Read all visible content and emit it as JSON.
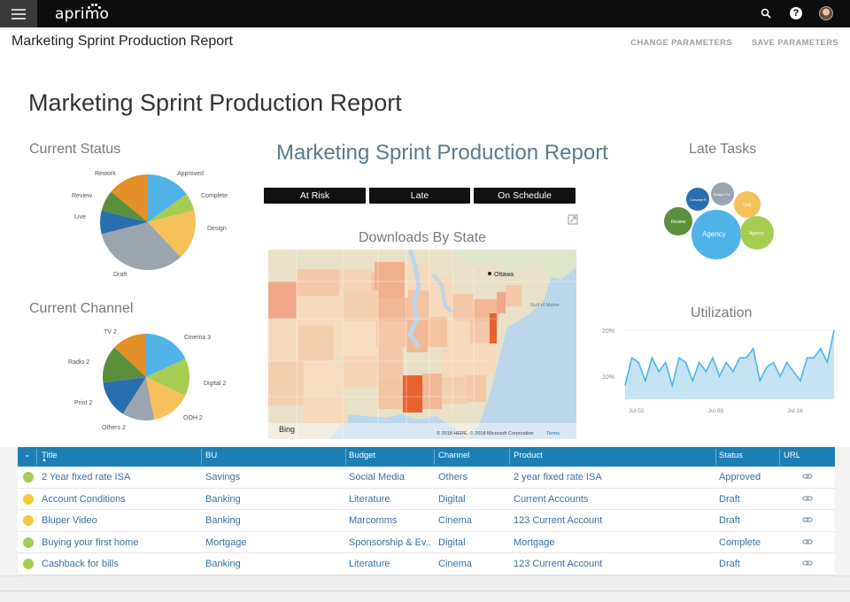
{
  "topbar": {
    "logo_text": "aprimo"
  },
  "header": {
    "title": "Marketing Sprint Production Report",
    "actions": [
      "CHANGE PARAMETERS",
      "SAVE PARAMETERS"
    ]
  },
  "report": {
    "title": "Marketing Sprint Production Report",
    "center_title": "Marketing Sprint Production Report",
    "current_status": {
      "label": "Current Status",
      "slices": [
        {
          "name": "Approved",
          "value": 15,
          "color": "#4fb3e8"
        },
        {
          "name": "Complete",
          "value": 6,
          "color": "#a6cc52"
        },
        {
          "name": "Design",
          "value": 17,
          "color": "#f6c05b"
        },
        {
          "name": "Draft",
          "value": 33,
          "color": "#9aa5ad"
        },
        {
          "name": "Live",
          "value": 8,
          "color": "#2a6fad"
        },
        {
          "name": "Review",
          "value": 7,
          "color": "#5b8f3c"
        },
        {
          "name": "Rework",
          "value": 14,
          "color": "#e38f2a"
        }
      ]
    },
    "current_channel": {
      "label": "Current Channel",
      "slices": [
        {
          "name": "Cinema 3",
          "value": 18,
          "color": "#4fb3e8"
        },
        {
          "name": "Digital 2",
          "value": 14,
          "color": "#a6cc52"
        },
        {
          "name": "OOH 2",
          "value": 15,
          "color": "#f6c05b"
        },
        {
          "name": "Others 2",
          "value": 12,
          "color": "#9aa5ad"
        },
        {
          "name": "Print 2",
          "value": 14,
          "color": "#2a6fad"
        },
        {
          "name": "Radio 2",
          "value": 14,
          "color": "#5b8f3c"
        },
        {
          "name": "TV 2",
          "value": 13,
          "color": "#e38f2a"
        }
      ]
    },
    "filters": [
      "At Risk",
      "Late",
      "On Schedule"
    ],
    "downloads_label": "Downloads By State",
    "map": {
      "city": "Ottawa",
      "region_label": "Gulf of Maine",
      "brand": "Bing",
      "copyright": "© 2018 HERE, © 2018 Microsoft Corporation",
      "terms": "Terms"
    },
    "late_tasks": {
      "label": "Late Tasks",
      "bubbles": [
        {
          "name": "Agency",
          "color": "#4fb3e8"
        },
        {
          "name": "Agency",
          "color": "#a6cc52"
        },
        {
          "name": "Grid",
          "color": "#f6c05b"
        },
        {
          "name": "Budget Re",
          "color": "#9aa5ad"
        },
        {
          "name": "Concept S",
          "color": "#2a6fad"
        },
        {
          "name": "Review",
          "color": "#5b8f3c"
        }
      ]
    },
    "utilization": {
      "label": "Utilization",
      "y_ticks": [
        "20%",
        "10%"
      ],
      "x_ticks": [
        "Jul 02",
        "Jul 09",
        "Jul 16"
      ]
    }
  },
  "chart_data": [
    {
      "type": "pie",
      "title": "Current Status",
      "categories": [
        "Approved",
        "Complete",
        "Design",
        "Draft",
        "Live",
        "Review",
        "Rework"
      ],
      "values": [
        15,
        6,
        17,
        33,
        8,
        7,
        14
      ]
    },
    {
      "type": "pie",
      "title": "Current Channel",
      "categories": [
        "Cinema 3",
        "Digital 2",
        "OOH 2",
        "Others 2",
        "Print 2",
        "Radio 2",
        "TV 2"
      ],
      "values": [
        18,
        14,
        15,
        12,
        14,
        14,
        13
      ]
    },
    {
      "type": "area",
      "title": "Utilization",
      "x_ticks": [
        "Jul 02",
        "Jul 09",
        "Jul 16"
      ],
      "y_ticks": [
        "20%",
        "10%"
      ],
      "ylim": [
        5,
        20
      ],
      "values": [
        8,
        14,
        13,
        9,
        14,
        11,
        13,
        8,
        14,
        13,
        9,
        13,
        11,
        14,
        10,
        13,
        11,
        14,
        14,
        16,
        9,
        12,
        13,
        10,
        13,
        11,
        9,
        14,
        14,
        16,
        13,
        20
      ]
    }
  ],
  "table": {
    "columns": [
      "Title",
      "BU",
      "Budget",
      "Channel",
      "Product",
      "Status",
      "URL"
    ],
    "rows": [
      {
        "status_color": "#a6cc52",
        "cells": [
          "2 Year fixed rate ISA",
          "Savings",
          "Social Media",
          "Others",
          "2 year fixed rate ISA",
          "Approved"
        ]
      },
      {
        "status_color": "#f6c93b",
        "cells": [
          "Account Conditions",
          "Banking",
          "Literature",
          "Digital",
          "Current Accounts",
          "Draft"
        ]
      },
      {
        "status_color": "#f6c93b",
        "cells": [
          "Bluper Video",
          "Banking",
          "Marcomms",
          "Cinema",
          "123 Current Account",
          "Draft"
        ]
      },
      {
        "status_color": "#a6cc52",
        "cells": [
          "Buying your first home",
          "Mortgage",
          "Sponsorship & Ev...",
          "Digital",
          "Mortgage",
          "Complete"
        ]
      },
      {
        "status_color": "#a6cc52",
        "cells": [
          "Cashback for bills",
          "Banking",
          "Literature",
          "Cinema",
          "123 Current Account",
          "Draft"
        ]
      }
    ]
  }
}
